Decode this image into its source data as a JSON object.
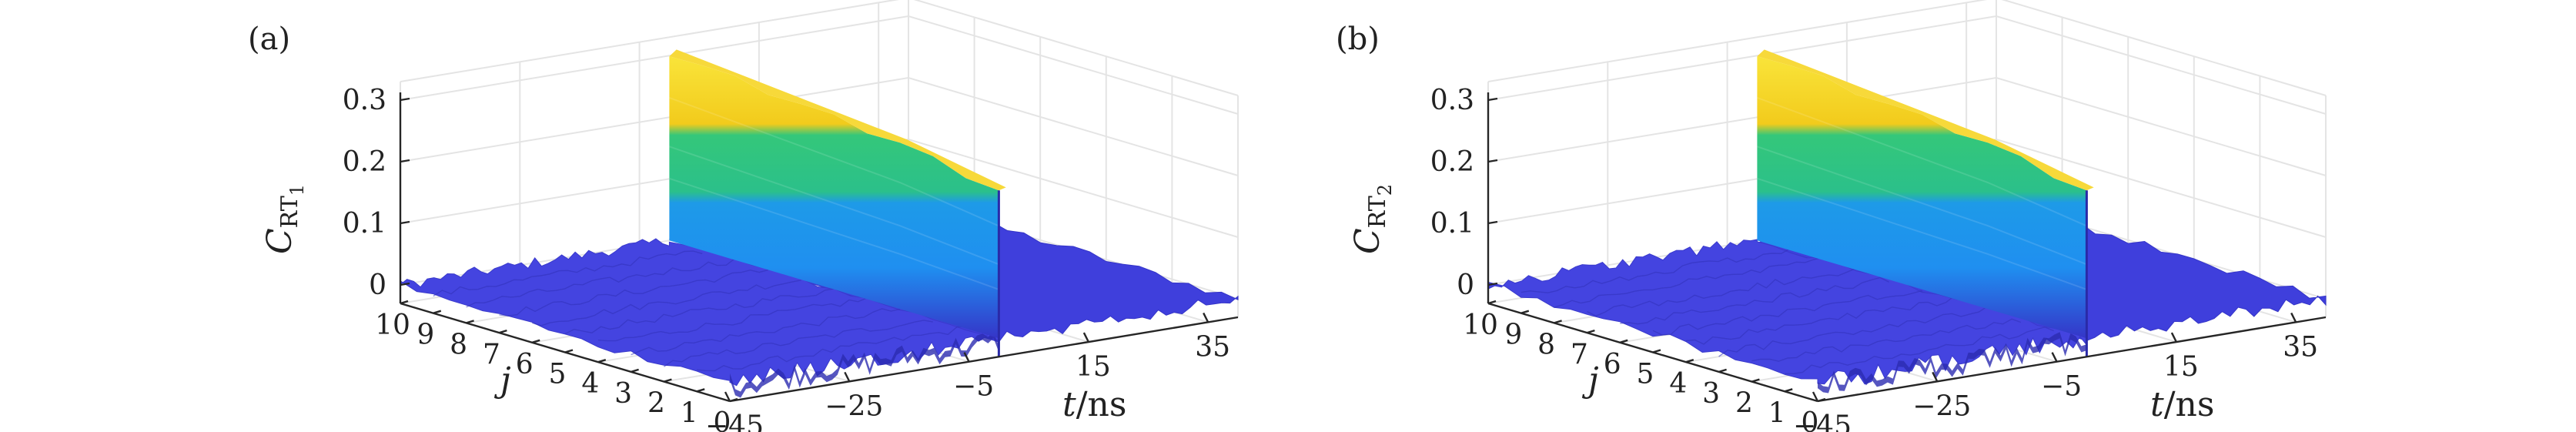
{
  "panels": [
    {
      "label": "(a)",
      "z_label_main": "C",
      "z_label_sub": "RT",
      "z_label_index": "1"
    },
    {
      "label": "(b)",
      "z_label_main": "C",
      "z_label_sub": "RT",
      "z_label_index": "2"
    }
  ],
  "colors": {
    "low": "#3d3dd6",
    "wall_low": "#1f8ff0",
    "wall_mid": "#2bbd8a",
    "wall_high": "#f4d01a",
    "axis": "#262626"
  },
  "chart_data": [
    {
      "type": "surface",
      "title": "(a)",
      "xlabel": "t/ns",
      "ylabel": "j",
      "zlabel": "C_RT1",
      "x_ticks": [
        "−45",
        "−25",
        "−5",
        "15",
        "35"
      ],
      "y_ticks": [
        "0",
        "1",
        "2",
        "3",
        "4",
        "5",
        "6",
        "7",
        "8",
        "9",
        "10"
      ],
      "z_ticks": [
        "0",
        "0.1",
        "0.2",
        "0.3"
      ],
      "xlim": [
        -45,
        40
      ],
      "ylim": [
        0,
        10
      ],
      "zlim": [
        -0.03,
        0.33
      ],
      "peak_t": 0,
      "peak_values_by_j": [
        0.24,
        0.25,
        0.26,
        0.27,
        0.275,
        0.28,
        0.285,
        0.29,
        0.295,
        0.3,
        0.305
      ],
      "baseline": 0
    },
    {
      "type": "surface",
      "title": "(b)",
      "xlabel": "t/ns",
      "ylabel": "j",
      "zlabel": "C_RT2",
      "x_ticks": [
        "−45",
        "−25",
        "−5",
        "15",
        "35"
      ],
      "y_ticks": [
        "0",
        "1",
        "2",
        "3",
        "4",
        "5",
        "6",
        "7",
        "8",
        "9",
        "10"
      ],
      "z_ticks": [
        "0",
        "0.1",
        "0.2",
        "0.3"
      ],
      "xlim": [
        -45,
        40
      ],
      "ylim": [
        0,
        10
      ],
      "zlim": [
        -0.03,
        0.33
      ],
      "peak_t": 0,
      "peak_values_by_j": [
        0.24,
        0.25,
        0.26,
        0.27,
        0.275,
        0.28,
        0.285,
        0.29,
        0.295,
        0.3,
        0.305
      ],
      "baseline": 0
    }
  ]
}
